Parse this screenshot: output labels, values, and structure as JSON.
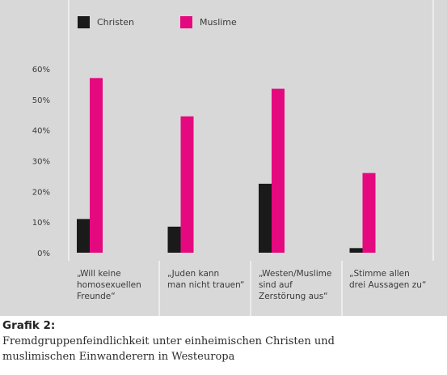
{
  "chart_data": {
    "type": "bar",
    "categories": [
      "„Will keine\nhomosexuellen\nFreunde“",
      "„Juden kann\nman nicht trauen“",
      "„Westen/Muslime\nsind auf\nZerstörung aus“",
      "„Stimme allen\ndrei Aussagen zu“"
    ],
    "series": [
      {
        "name": "Christen",
        "color": "#1a1a1a",
        "values": [
          11,
          8.5,
          22.5,
          1.5
        ]
      },
      {
        "name": "Muslime",
        "color": "#e5097f",
        "values": [
          57,
          44.5,
          53.5,
          26
        ]
      }
    ],
    "yticks": [
      "0%",
      "10%",
      "20%",
      "30%",
      "40%",
      "50%",
      "60%"
    ],
    "ylim": [
      0,
      60
    ],
    "grid": false,
    "legend": "top-left"
  },
  "caption": {
    "title": "Grafik 2:",
    "line1": "Fremdgruppenfeindlichkeit unter einheimischen Christen und",
    "line2": "muslimischen Einwanderern in Westeuropa"
  }
}
